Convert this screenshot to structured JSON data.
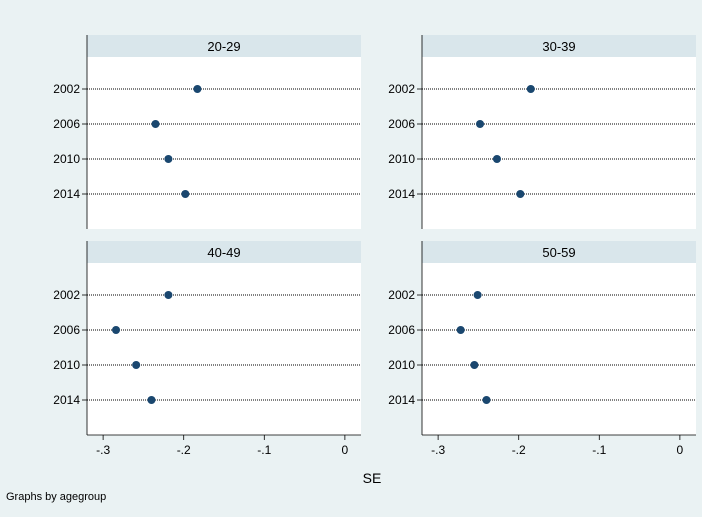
{
  "colors": {
    "background": "#eaf2f3",
    "panel": "#ffffff",
    "strip": "#d9e6eb",
    "marker": "#1a476f",
    "dots": "#000000"
  },
  "chart_data": {
    "type": "scatter",
    "subtype": "dot-plot-by-group",
    "categories": [
      "2002",
      "2006",
      "2010",
      "2014"
    ],
    "xlabel": "SE",
    "xlim": [
      -0.32,
      0.02
    ],
    "xticks": [
      -0.3,
      -0.2,
      -0.1,
      0
    ],
    "xtick_labels": [
      "-.3",
      "-.2",
      "-.1",
      "0"
    ],
    "note": "Graphs by agegroup",
    "panels": [
      {
        "title": "20-29",
        "values": [
          -0.183,
          -0.235,
          -0.219,
          -0.198
        ]
      },
      {
        "title": "30-39",
        "values": [
          -0.185,
          -0.248,
          -0.227,
          -0.198
        ]
      },
      {
        "title": "40-49",
        "values": [
          -0.219,
          -0.284,
          -0.259,
          -0.24
        ]
      },
      {
        "title": "50-59",
        "values": [
          -0.251,
          -0.272,
          -0.255,
          -0.24
        ]
      }
    ]
  }
}
